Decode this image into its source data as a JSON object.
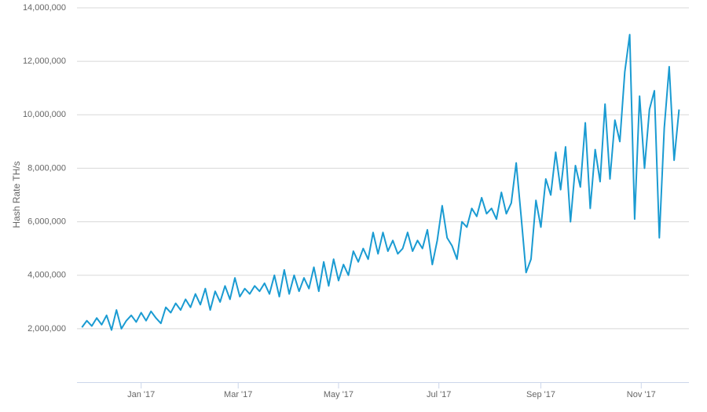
{
  "chart_data": {
    "type": "line",
    "y_label": "Hash Rate TH/s",
    "x": [
      0,
      3,
      6,
      9,
      12,
      15,
      18,
      21,
      24,
      27,
      30,
      33,
      36,
      39,
      42,
      45,
      48,
      51,
      54,
      57,
      60,
      63,
      66,
      69,
      72,
      75,
      78,
      81,
      84,
      87,
      90,
      93,
      96,
      99,
      102,
      105,
      108,
      111,
      114,
      117,
      120,
      123,
      126,
      129,
      132,
      135,
      138,
      141,
      144,
      147,
      150,
      153,
      156,
      159,
      162,
      165,
      168,
      171,
      174,
      177,
      180,
      183,
      186,
      189,
      192,
      195,
      198,
      201,
      204,
      207,
      210,
      213,
      216,
      219,
      222,
      225,
      228,
      231,
      234,
      237,
      240,
      243,
      246,
      249,
      252,
      255,
      258,
      261,
      264,
      267,
      270,
      273,
      276,
      279,
      282,
      285,
      288,
      291,
      294,
      297,
      300,
      303,
      306,
      309,
      312,
      315,
      318,
      321,
      324,
      327,
      330,
      333,
      336,
      339,
      342,
      345,
      348,
      351,
      354,
      357,
      360,
      363
    ],
    "series": [
      {
        "name": "Hash Rate",
        "color": "#1a9bd2",
        "values": [
          2050000,
          2300000,
          2100000,
          2400000,
          2150000,
          2500000,
          1950000,
          2700000,
          2000000,
          2300000,
          2500000,
          2250000,
          2600000,
          2300000,
          2650000,
          2400000,
          2200000,
          2800000,
          2600000,
          2950000,
          2700000,
          3100000,
          2800000,
          3300000,
          2900000,
          3500000,
          2700000,
          3400000,
          3000000,
          3600000,
          3100000,
          3900000,
          3200000,
          3500000,
          3300000,
          3600000,
          3400000,
          3700000,
          3300000,
          4000000,
          3200000,
          4200000,
          3300000,
          4000000,
          3400000,
          3900000,
          3500000,
          4300000,
          3400000,
          4500000,
          3600000,
          4600000,
          3800000,
          4400000,
          4000000,
          4900000,
          4500000,
          5000000,
          4600000,
          5600000,
          4800000,
          5600000,
          4900000,
          5300000,
          4800000,
          5000000,
          5600000,
          4900000,
          5300000,
          5000000,
          5700000,
          4400000,
          5300000,
          6600000,
          5400000,
          5100000,
          4600000,
          6000000,
          5800000,
          6500000,
          6200000,
          6900000,
          6300000,
          6500000,
          6100000,
          7100000,
          6300000,
          6700000,
          8200000,
          6200000,
          4100000,
          4600000,
          6800000,
          5800000,
          7600000,
          7000000,
          8600000,
          7200000,
          8800000,
          6000000,
          8100000,
          7300000,
          9700000,
          6500000,
          8700000,
          7500000,
          10400000,
          7600000,
          9800000,
          9000000,
          11600000,
          13000000,
          6100000,
          10700000,
          8000000,
          10200000,
          10900000,
          5400000,
          9500000,
          11800000,
          8300000,
          10200000
        ]
      }
    ],
    "xlim": [
      -3,
      369
    ],
    "xticks": [
      {
        "value": 36,
        "label": "Jan '17"
      },
      {
        "value": 95,
        "label": "Mar '17"
      },
      {
        "value": 156,
        "label": "May '17"
      },
      {
        "value": 217,
        "label": "Jul '17"
      },
      {
        "value": 279,
        "label": "Sep '17"
      },
      {
        "value": 340,
        "label": "Nov '17"
      }
    ],
    "ylim": [
      0,
      14000000
    ],
    "yticks": [
      {
        "value": 2000000,
        "label": "2,000,000"
      },
      {
        "value": 4000000,
        "label": "4,000,000"
      },
      {
        "value": 6000000,
        "label": "6,000,000"
      },
      {
        "value": 8000000,
        "label": "8,000,000"
      },
      {
        "value": 10000000,
        "label": "10,000,000"
      },
      {
        "value": 12000000,
        "label": "12,000,000"
      },
      {
        "value": 14000000,
        "label": "14,000,000"
      }
    ],
    "grid": true
  }
}
